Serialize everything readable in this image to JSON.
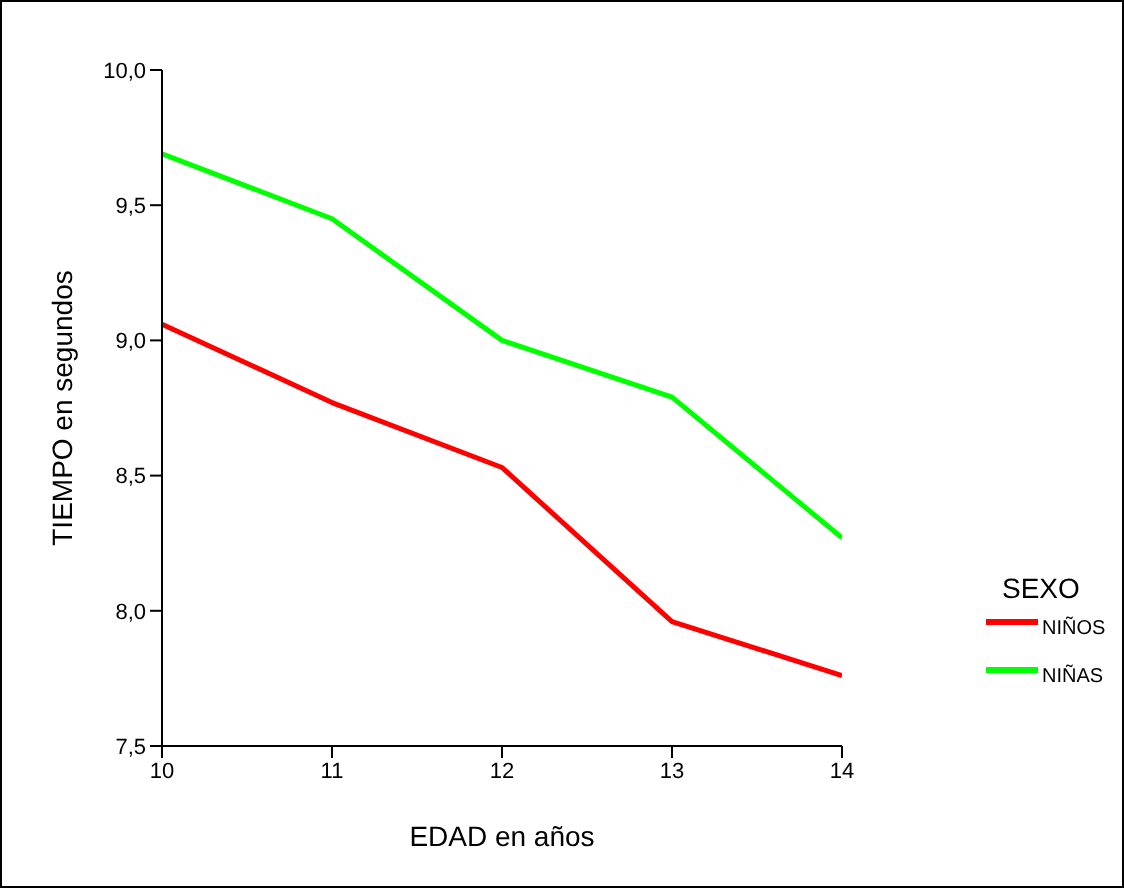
{
  "chart_data": {
    "type": "line",
    "xlabel": "EDAD  en  años",
    "ylabel": "TIEMPO  en  segundos",
    "legend_title": "SEXO",
    "x": [
      10,
      11,
      12,
      13,
      14
    ],
    "series": [
      {
        "name": "NIÑOS",
        "color": "#ff0000",
        "values": [
          9.06,
          8.77,
          8.53,
          7.96,
          7.76
        ]
      },
      {
        "name": "NIÑAS",
        "color": "#00ff00",
        "values": [
          9.69,
          9.45,
          9.0,
          8.79,
          8.27
        ]
      }
    ],
    "xlim": [
      10,
      14
    ],
    "xticks": [
      10,
      11,
      12,
      13,
      14
    ],
    "ylim": [
      7.5,
      10
    ],
    "yticks": [
      {
        "value": 7.5,
        "label": "7,5"
      },
      {
        "value": 8,
        "label": "8,0"
      },
      {
        "value": 8.5,
        "label": "8,5"
      },
      {
        "value": 9,
        "label": "9,0"
      },
      {
        "value": 9.5,
        "label": "9,5"
      },
      {
        "value": 10,
        "label": "10,0"
      }
    ],
    "grid": false,
    "legend": "right",
    "marker": "none",
    "line_style": "solid"
  }
}
